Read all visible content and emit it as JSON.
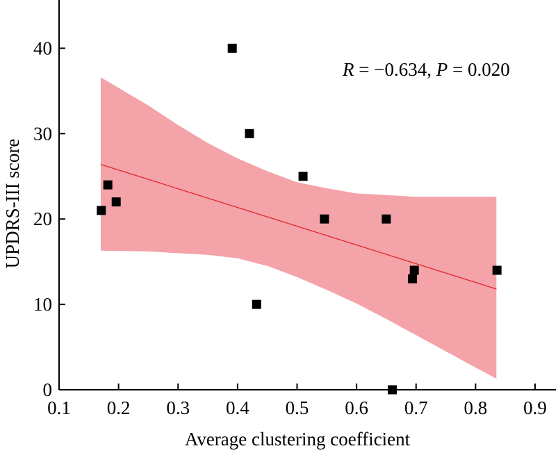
{
  "chart_data": {
    "type": "scatter",
    "title": "",
    "xlabel": "Average clustering coefficient",
    "ylabel": "UPDRS-III score",
    "xlim": [
      0.1,
      0.9
    ],
    "ylim": [
      0,
      45
    ],
    "x_ticks": [
      0.1,
      0.2,
      0.3,
      0.4,
      0.5,
      0.6,
      0.7,
      0.8,
      0.9
    ],
    "x_tick_labels": [
      "0.1",
      "0.2",
      "0.3",
      "0.4",
      "0.5",
      "0.6",
      "0.7",
      "0.8",
      "0.9"
    ],
    "y_ticks": [
      0,
      10,
      20,
      30,
      40
    ],
    "y_tick_labels": [
      "0",
      "10",
      "20",
      "30",
      "40"
    ],
    "grid": false,
    "annotation": {
      "r_symbol": "R",
      "r_text": " = −0.634, ",
      "p_symbol": "P",
      "p_text": " = 0.020"
    },
    "points": [
      {
        "x": 0.171,
        "y": 21
      },
      {
        "x": 0.182,
        "y": 24
      },
      {
        "x": 0.196,
        "y": 22
      },
      {
        "x": 0.391,
        "y": 40
      },
      {
        "x": 0.42,
        "y": 30
      },
      {
        "x": 0.432,
        "y": 10
      },
      {
        "x": 0.51,
        "y": 25
      },
      {
        "x": 0.546,
        "y": 20
      },
      {
        "x": 0.65,
        "y": 20
      },
      {
        "x": 0.66,
        "y": 0
      },
      {
        "x": 0.694,
        "y": 13
      },
      {
        "x": 0.697,
        "y": 14
      },
      {
        "x": 0.836,
        "y": 14
      }
    ],
    "fit_line": {
      "x": [
        0.17,
        0.835
      ],
      "y": [
        26.4,
        11.8
      ]
    },
    "confidence_band": {
      "x": [
        0.17,
        0.25,
        0.3,
        0.35,
        0.4,
        0.45,
        0.5,
        0.55,
        0.6,
        0.65,
        0.7,
        0.75,
        0.8,
        0.835
      ],
      "upper": [
        36.6,
        33.3,
        31.0,
        28.9,
        27.1,
        25.6,
        24.3,
        23.6,
        23.0,
        22.8,
        22.6,
        22.6,
        22.6,
        22.6
      ],
      "lower": [
        16.3,
        16.2,
        16.0,
        15.8,
        15.4,
        14.5,
        13.2,
        11.7,
        10.1,
        8.3,
        6.4,
        4.5,
        2.6,
        1.3
      ]
    },
    "colors": {
      "band": "#f4a3a8",
      "fit_line": "#e3262f",
      "marker": "#000000"
    }
  }
}
